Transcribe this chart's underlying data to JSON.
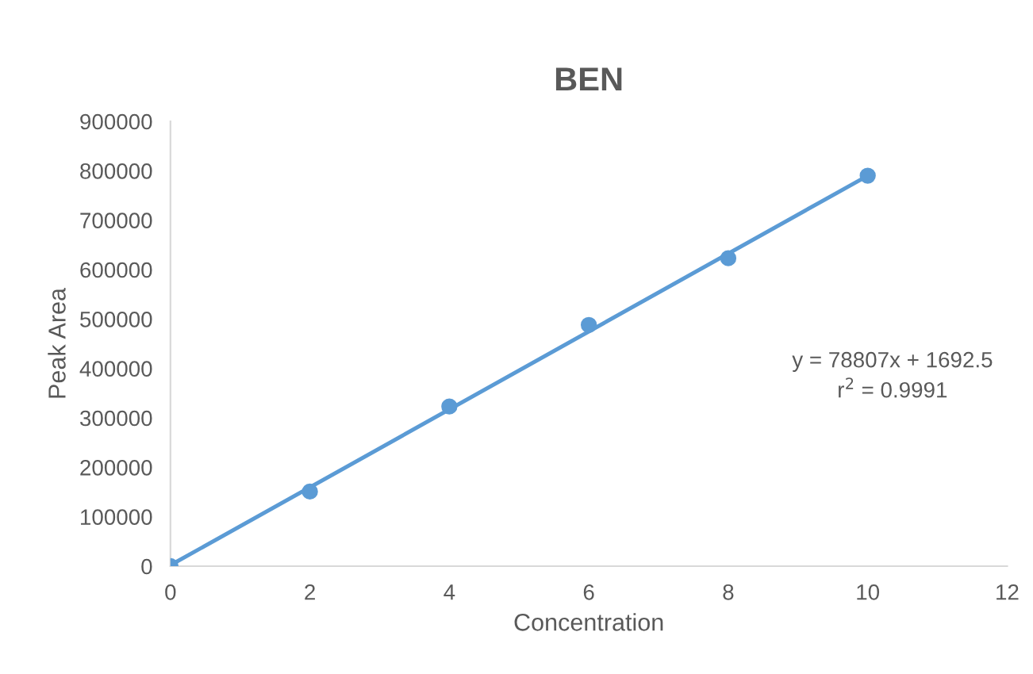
{
  "chart_data": {
    "type": "scatter",
    "title": "BEN",
    "xlabel": "Concentration",
    "ylabel": "Peak Area",
    "series": [
      {
        "color": "#5b9bd5",
        "marker": "circle",
        "x": [
          0,
          2,
          4,
          6,
          8,
          10
        ],
        "values": [
          0,
          151000,
          323000,
          488000,
          623000,
          790000
        ]
      },
      {
        "type": "line",
        "color": "#5b9bd5",
        "marker": "none",
        "x": [
          0,
          10
        ],
        "values": [
          2000,
          790000
        ]
      }
    ],
    "annotations": [
      "y = 78807x + 1692.5",
      "r$^{2}$ = 0.9991"
    ],
    "xlim": [
      0,
      12
    ],
    "xticks": [
      0,
      2,
      4,
      6,
      8,
      10,
      12
    ],
    "ylim": [
      0,
      900000
    ],
    "yticks": [
      0,
      100000,
      200000,
      300000,
      400000,
      500000,
      600000,
      700000,
      800000,
      900000
    ],
    "grid": false,
    "legend": false
  }
}
